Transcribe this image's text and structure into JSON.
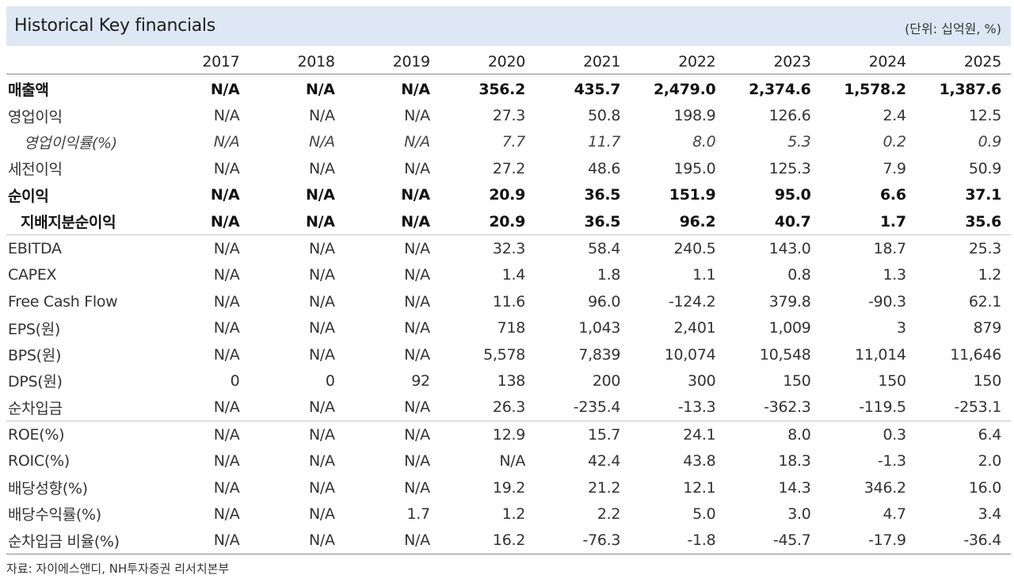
{
  "title": "Historical Key financials",
  "unit": "(단위: 십억원, %)",
  "years": [
    "2017",
    "2018",
    "2019",
    "2020",
    "2021",
    "2022",
    "2023",
    "2024",
    "2025"
  ],
  "rows": [
    {
      "label": "매출액",
      "values": [
        "N/A",
        "N/A",
        "N/A",
        "356.2",
        "435.7",
        "2,479.0",
        "2,374.6",
        "1,578.2",
        "1,387.6"
      ]
    },
    {
      "label": "영업이익",
      "values": [
        "N/A",
        "N/A",
        "N/A",
        "27.3",
        "50.8",
        "198.9",
        "126.6",
        "2.4",
        "12.5"
      ]
    },
    {
      "label": "영업이익률(%)",
      "values": [
        "N/A",
        "N/A",
        "N/A",
        "7.7",
        "11.7",
        "8.0",
        "5.3",
        "0.2",
        "0.9"
      ]
    },
    {
      "label": "세전이익",
      "values": [
        "N/A",
        "N/A",
        "N/A",
        "27.2",
        "48.6",
        "195.0",
        "125.3",
        "7.9",
        "50.9"
      ]
    },
    {
      "label": "순이익",
      "values": [
        "N/A",
        "N/A",
        "N/A",
        "20.9",
        "36.5",
        "151.9",
        "95.0",
        "6.6",
        "37.1"
      ]
    },
    {
      "label": "지배지분순이익",
      "values": [
        "N/A",
        "N/A",
        "N/A",
        "20.9",
        "36.5",
        "96.2",
        "40.7",
        "1.7",
        "35.6"
      ]
    },
    {
      "label": "EBITDA",
      "values": [
        "N/A",
        "N/A",
        "N/A",
        "32.3",
        "58.4",
        "240.5",
        "143.0",
        "18.7",
        "25.3"
      ]
    },
    {
      "label": "CAPEX",
      "values": [
        "N/A",
        "N/A",
        "N/A",
        "1.4",
        "1.8",
        "1.1",
        "0.8",
        "1.3",
        "1.2"
      ]
    },
    {
      "label": "Free Cash Flow",
      "values": [
        "N/A",
        "N/A",
        "N/A",
        "11.6",
        "96.0",
        "-124.2",
        "379.8",
        "-90.3",
        "62.1"
      ]
    },
    {
      "label": "EPS(원)",
      "values": [
        "N/A",
        "N/A",
        "N/A",
        "718",
        "1,043",
        "2,401",
        "1,009",
        "3",
        "879"
      ]
    },
    {
      "label": "BPS(원)",
      "values": [
        "N/A",
        "N/A",
        "N/A",
        "5,578",
        "7,839",
        "10,074",
        "10,548",
        "11,014",
        "11,646"
      ]
    },
    {
      "label": "DPS(원)",
      "values": [
        "0",
        "0",
        "92",
        "138",
        "200",
        "300",
        "150",
        "150",
        "150"
      ]
    },
    {
      "label": "순차입금",
      "values": [
        "N/A",
        "N/A",
        "N/A",
        "26.3",
        "-235.4",
        "-13.3",
        "-362.3",
        "-119.5",
        "-253.1"
      ]
    },
    {
      "label": "ROE(%)",
      "values": [
        "N/A",
        "N/A",
        "N/A",
        "12.9",
        "15.7",
        "24.1",
        "8.0",
        "0.3",
        "6.4"
      ]
    },
    {
      "label": "ROIC(%)",
      "values": [
        "N/A",
        "N/A",
        "N/A",
        "N/A",
        "42.4",
        "43.8",
        "18.3",
        "-1.3",
        "2.0"
      ]
    },
    {
      "label": "배당성향(%)",
      "values": [
        "N/A",
        "N/A",
        "N/A",
        "19.2",
        "21.2",
        "12.1",
        "14.3",
        "346.2",
        "16.0"
      ]
    },
    {
      "label": "배당수익률(%)",
      "values": [
        "N/A",
        "N/A",
        "1.7",
        "1.2",
        "2.2",
        "5.0",
        "3.0",
        "4.7",
        "3.4"
      ]
    },
    {
      "label": "순차입금 비율(%)",
      "values": [
        "N/A",
        "N/A",
        "N/A",
        "16.2",
        "-76.3",
        "-1.8",
        "-45.7",
        "-17.9",
        "-36.4"
      ]
    }
  ],
  "source": "자료: 자이에스앤디, NH투자증권 리서치본부"
}
